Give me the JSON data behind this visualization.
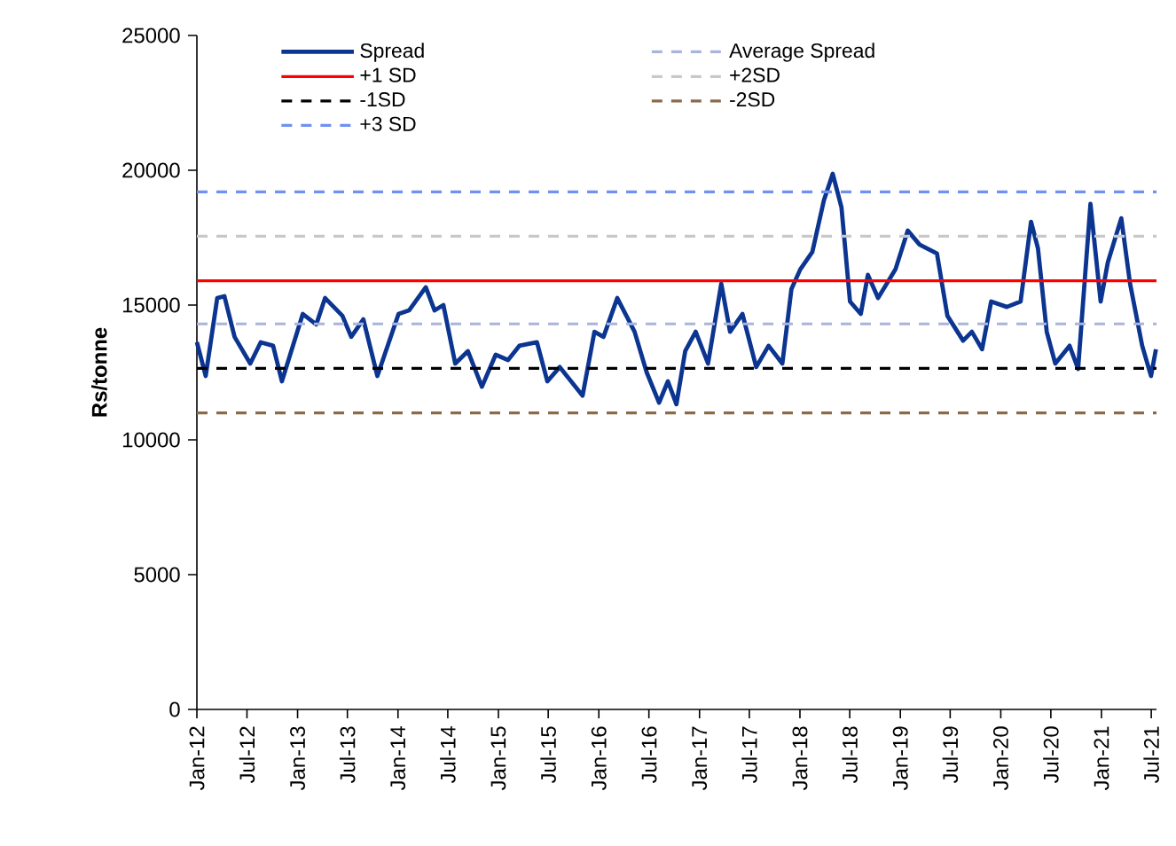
{
  "chart_data": {
    "type": "line",
    "ylabel": "Rs/tonne",
    "x": [
      "2012-01-01",
      "2012-02-02",
      "2012-03-15",
      "2012-04-10",
      "2012-05-17",
      "2012-07-13",
      "2012-08-20",
      "2012-10-04",
      "2012-11-05",
      "2013-01-20",
      "2013-03-10",
      "2013-04-11",
      "2013-06-13",
      "2013-07-15",
      "2013-08-28",
      "2013-10-18",
      "2014-01-03",
      "2014-02-10",
      "2014-04-12",
      "2014-05-14",
      "2014-06-15",
      "2014-07-28",
      "2014-09-12",
      "2014-11-02",
      "2014-12-22",
      "2015-02-05",
      "2015-03-18",
      "2015-05-21",
      "2015-06-28",
      "2015-08-12",
      "2015-11-03",
      "2015-12-16",
      "2016-01-18",
      "2016-03-08",
      "2016-05-10",
      "2016-06-23",
      "2016-08-07",
      "2016-09-08",
      "2016-10-09",
      "2016-11-10",
      "2016-12-18",
      "2017-02-01",
      "2017-03-21",
      "2017-04-22",
      "2017-06-06",
      "2017-07-26",
      "2017-09-09",
      "2017-10-29",
      "2017-12-01",
      "2018-01-02",
      "2018-02-15",
      "2018-03-29",
      "2018-04-30",
      "2018-06-01",
      "2018-07-02",
      "2018-08-10",
      "2018-09-05",
      "2018-10-12",
      "2018-12-14",
      "2019-01-28",
      "2019-03-12",
      "2019-05-14",
      "2019-06-21",
      "2019-08-17",
      "2019-09-18",
      "2019-10-25",
      "2019-11-27",
      "2020-01-23",
      "2020-03-13",
      "2020-04-20",
      "2020-05-15",
      "2020-06-16",
      "2020-07-17",
      "2020-09-07",
      "2020-10-08",
      "2020-11-22",
      "2020-12-29",
      "2021-01-24",
      "2021-03-14",
      "2021-04-15",
      "2021-05-29",
      "2021-06-30",
      "2021-07-18"
    ],
    "series": [
      {
        "name": "Spread",
        "color": "#0b3590",
        "values": [
          13620,
          12370,
          15260,
          15330,
          13820,
          12830,
          13620,
          13490,
          12170,
          14670,
          14280,
          15260,
          14600,
          13820,
          14470,
          12370,
          14670,
          14800,
          15660,
          14800,
          15000,
          12830,
          13290,
          11970,
          13160,
          12960,
          13490,
          13620,
          12170,
          12700,
          11640,
          14010,
          13820,
          15260,
          14010,
          12500,
          11380,
          12170,
          11320,
          13290,
          14010,
          12830,
          15790,
          14010,
          14670,
          12700,
          13490,
          12830,
          15590,
          16320,
          16970,
          18880,
          19870,
          18620,
          15130,
          14670,
          16120,
          15260,
          16320,
          17760,
          17240,
          16910,
          14600,
          13680,
          14010,
          13360,
          15130,
          14930,
          15130,
          18090,
          17110,
          14010,
          12830,
          13490,
          12630,
          18750,
          15130,
          16580,
          18220,
          15790,
          13490,
          12370,
          13360
        ]
      }
    ],
    "ref_lines": [
      {
        "axis": "y",
        "value": 14300,
        "label": "Average Spread",
        "color": "#a9b4dc",
        "line_style": "dashed"
      },
      {
        "axis": "y",
        "value": 15900,
        "label": "+1 SD",
        "color": "#ff0000",
        "line_style": "solid"
      },
      {
        "axis": "y",
        "value": 17550,
        "label": "+2SD",
        "color": "#c8c8c8",
        "line_style": "dashed"
      },
      {
        "axis": "y",
        "value": 12650,
        "label": "-1SD",
        "color": "#000000",
        "line_style": "dashed"
      },
      {
        "axis": "y",
        "value": 11000,
        "label": "-2SD",
        "color": "#8c6a48",
        "line_style": "dashed"
      },
      {
        "axis": "y",
        "value": 19200,
        "label": "+3 SD",
        "color": "#7091f2",
        "line_style": "dashed"
      }
    ],
    "xlim": [
      "2012-01-01",
      "2021-07-20"
    ],
    "xticks": [
      {
        "value": "2012-01",
        "label": "Jan-12"
      },
      {
        "value": "2012-07",
        "label": "Jul-12"
      },
      {
        "value": "2013-01",
        "label": "Jan-13"
      },
      {
        "value": "2013-07",
        "label": "Jul-13"
      },
      {
        "value": "2014-01",
        "label": "Jan-14"
      },
      {
        "value": "2014-07",
        "label": "Jul-14"
      },
      {
        "value": "2015-01",
        "label": "Jan-15"
      },
      {
        "value": "2015-07",
        "label": "Jul-15"
      },
      {
        "value": "2016-01",
        "label": "Jan-16"
      },
      {
        "value": "2016-07",
        "label": "Jul-16"
      },
      {
        "value": "2017-01",
        "label": "Jan-17"
      },
      {
        "value": "2017-07",
        "label": "Jul-17"
      },
      {
        "value": "2018-01",
        "label": "Jan-18"
      },
      {
        "value": "2018-07",
        "label": "Jul-18"
      },
      {
        "value": "2019-01",
        "label": "Jan-19"
      },
      {
        "value": "2019-07",
        "label": "Jul-19"
      },
      {
        "value": "2020-01",
        "label": "Jan-20"
      },
      {
        "value": "2020-07",
        "label": "Jul-20"
      },
      {
        "value": "2021-01",
        "label": "Jan-21"
      },
      {
        "value": "2021-07",
        "label": "Jul-21"
      }
    ],
    "ylim": [
      0,
      25000
    ],
    "yticks": [
      0,
      5000,
      10000,
      15000,
      20000,
      25000
    ],
    "grid": false,
    "legend": "top",
    "marker": "none",
    "line_style": "solid"
  }
}
